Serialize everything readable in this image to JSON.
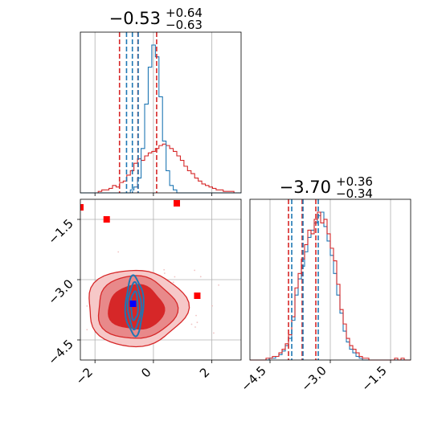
{
  "chart_data": {
    "type": "corner",
    "parameters": [
      {
        "title_value": "−0.53",
        "title_upper": "+0.64",
        "title_lower": "−0.63",
        "range": [
          -2.5,
          3.0
        ],
        "ticks": [
          -2,
          0,
          2
        ],
        "tick_labels": [
          "−2",
          "0",
          "2"
        ]
      },
      {
        "title_value": "−3.70",
        "title_upper": "+0.36",
        "title_lower": "−0.34",
        "range": [
          -5.0,
          -1.0
        ],
        "ticks": [
          -4.5,
          -3.0,
          -1.5
        ],
        "tick_labels": [
          "−4.5",
          "−3.0",
          "−1.5"
        ]
      }
    ],
    "series": [
      {
        "color": "#d62728",
        "param1_quantiles": [
          -1.16,
          -0.53,
          0.11
        ],
        "param2_quantiles": [
          -4.04,
          -3.7,
          -3.36
        ],
        "param1_hist": [
          0,
          0,
          0,
          0,
          0,
          1,
          2,
          2,
          3,
          5,
          4,
          7,
          8,
          12,
          15,
          20,
          23,
          22,
          25,
          27,
          28,
          30,
          32,
          33,
          32,
          30,
          28,
          25,
          22,
          18,
          15,
          13,
          10,
          8,
          6,
          5,
          4,
          3,
          2,
          2,
          1,
          1,
          1,
          0,
          0
        ],
        "param2_hist": [
          0,
          0,
          0,
          0,
          0,
          1,
          1,
          2,
          2,
          4,
          6,
          9,
          14,
          24,
          40,
          48,
          56,
          64,
          72,
          70,
          78,
          82,
          76,
          78,
          70,
          62,
          55,
          42,
          28,
          20,
          12,
          8,
          6,
          4,
          2,
          1,
          1,
          0,
          0,
          0,
          0,
          0,
          0,
          0,
          0,
          1,
          0,
          1,
          0,
          0
        ],
        "contour_center": [
          -0.6,
          -3.7
        ],
        "contour_levels_sigma": [
          [
            0.95,
            0.55
          ],
          [
            1.35,
            0.78
          ],
          [
            1.7,
            0.95
          ]
        ],
        "shaded_area_colors": [
          "#d62728",
          "#e8898a",
          "#f6c8c8"
        ],
        "outlier_points": [
          [
            -2.5,
            -1.2
          ],
          [
            -1.6,
            -1.5
          ],
          [
            0.8,
            -1.1
          ],
          [
            1.5,
            -3.4
          ]
        ]
      },
      {
        "color": "#1f77b4",
        "param1_quantiles": [
          -0.92,
          -0.72,
          -0.52
        ],
        "param2_quantiles": [
          -3.96,
          -3.68,
          -3.3
        ],
        "param1_hist": [
          0,
          0,
          0,
          0,
          0,
          0,
          0,
          0,
          0,
          0,
          0,
          0,
          0,
          0,
          2,
          4,
          10,
          30,
          60,
          85,
          100,
          92,
          65,
          35,
          15,
          5,
          2,
          0,
          0,
          0,
          0,
          0,
          0,
          0,
          0,
          0,
          0,
          0,
          0,
          0,
          0,
          0,
          0,
          0,
          0
        ],
        "param2_hist": [
          0,
          0,
          0,
          0,
          0,
          0,
          1,
          1,
          2,
          3,
          5,
          8,
          12,
          22,
          36,
          45,
          52,
          60,
          68,
          72,
          76,
          80,
          82,
          74,
          66,
          58,
          48,
          36,
          26,
          16,
          10,
          6,
          4,
          2,
          1,
          0,
          0,
          0,
          0,
          0,
          0,
          0,
          0,
          0,
          0,
          0,
          0,
          0,
          0,
          0
        ],
        "contour_center": [
          -0.65,
          -3.65
        ],
        "contour_levels_sigma": [
          [
            0.12,
            0.35
          ],
          [
            0.22,
            0.55
          ],
          [
            0.3,
            0.72
          ]
        ]
      }
    ],
    "truth_point": [
      -0.7,
      -3.6
    ],
    "truth_color": "#0000ff",
    "grid": true
  }
}
